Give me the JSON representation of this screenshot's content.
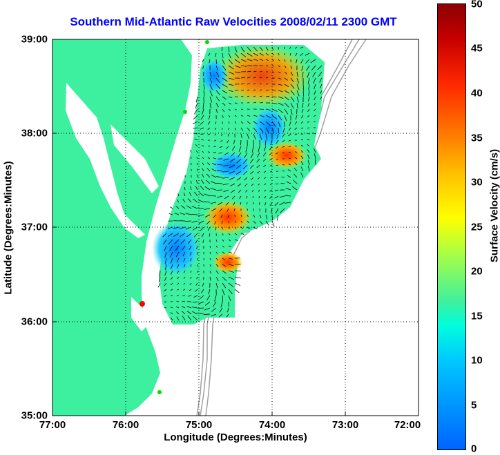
{
  "title": "Southern Mid-Atlantic Raw Velocities 2008/02/11 2300 GMT",
  "xlabel": "Longitude (Degrees:Minutes)",
  "ylabel": "Latitude (Degrees:Minutes)",
  "xticks": [
    "77:00",
    "76:00",
    "75:00",
    "74:00",
    "73:00",
    "72:00"
  ],
  "yticks": [
    "39:00",
    "38:00",
    "37:00",
    "36:00",
    "35:00"
  ],
  "colorbar": {
    "label": "Surface Velocity (cm/s)",
    "ticks": [
      "50",
      "45",
      "40",
      "35",
      "30",
      "25",
      "20",
      "15",
      "10",
      "5",
      "0"
    ]
  },
  "colors": {
    "land": "#3cf0a0",
    "title": "#0000ff",
    "bathymetry": "#a0a0a0",
    "station": "#ff0000",
    "station_alt": "#00dd00"
  }
}
